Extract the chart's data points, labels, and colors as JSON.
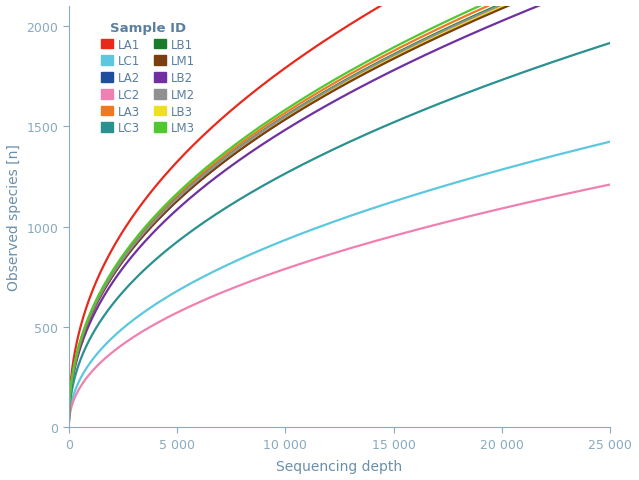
{
  "xlabel": "Sequencing depth",
  "ylabel": "Observed species [n]",
  "xlim": [
    0,
    25000
  ],
  "ylim": [
    0,
    2100
  ],
  "xticks": [
    0,
    5000,
    10000,
    15000,
    20000,
    25000
  ],
  "xtick_labels": [
    "0",
    "5 000",
    "10 000",
    "15 000",
    "20 000",
    "25 000"
  ],
  "yticks": [
    0,
    500,
    1000,
    1500,
    2000
  ],
  "background_color": "#ffffff",
  "axis_color": "#8aaabf",
  "label_color": "#6a8faa",
  "tick_color": "#6a8faa",
  "series": [
    {
      "name": "LA1",
      "color": "#e8291c",
      "a": 32.0,
      "b": 0.437
    },
    {
      "name": "LA2",
      "color": "#1f4e9e",
      "a": 25.5,
      "b": 0.445
    },
    {
      "name": "LA3",
      "color": "#f07820",
      "a": 26.5,
      "b": 0.443
    },
    {
      "name": "LB1",
      "color": "#1a7c2a",
      "a": 26.0,
      "b": 0.444
    },
    {
      "name": "LB2",
      "color": "#7030a0",
      "a": 23.5,
      "b": 0.45
    },
    {
      "name": "LB3",
      "color": "#ede020",
      "a": 25.8,
      "b": 0.444
    },
    {
      "name": "LC1",
      "color": "#5bc8e0",
      "a": 13.5,
      "b": 0.46
    },
    {
      "name": "LC2",
      "color": "#f080b0",
      "a": 10.8,
      "b": 0.466
    },
    {
      "name": "LC3",
      "color": "#2a9090",
      "a": 19.5,
      "b": 0.453
    },
    {
      "name": "LM1",
      "color": "#7b3e10",
      "a": 25.7,
      "b": 0.444
    },
    {
      "name": "LM2",
      "color": "#909090",
      "a": 26.2,
      "b": 0.443
    },
    {
      "name": "LM3",
      "color": "#50c830",
      "a": 27.0,
      "b": 0.442
    }
  ],
  "legend_title": "Sample ID",
  "legend_title_color": "#5a7fa0",
  "legend_text_color": "#5a7fa0",
  "legend_col1": [
    "LA1",
    "LA2",
    "LA3",
    "LB1",
    "LB2",
    "LB3"
  ],
  "legend_col2": [
    "LC1",
    "LC2",
    "LC3",
    "LM1",
    "LM2",
    "LM3"
  ]
}
